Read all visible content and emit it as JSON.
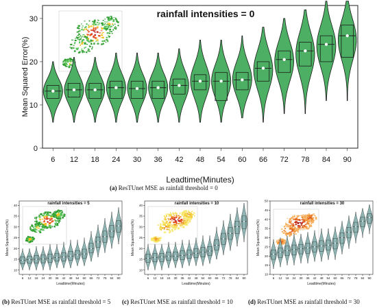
{
  "panels": [
    {
      "id": "a",
      "title": "rainfall intensities = 0",
      "xlabel": "Leadtime(Minutes)",
      "ylabel": "Mean Squared Error(%)",
      "caption_letter": "(a)",
      "caption_text": " ResTUnet MSE as rainfall threshold = 0",
      "map_type": "green"
    },
    {
      "id": "b",
      "title": "rainfall intensities = 5",
      "xlabel": "Leadtime(Minutes)",
      "ylabel": "Mean Squared Error(%)",
      "caption_letter": "(b)",
      "caption_text": " ResTUnet MSE as rainfall threshold = 5",
      "map_type": "green"
    },
    {
      "id": "c",
      "title": "rainfall intensities = 10",
      "xlabel": "Leadtime(Minutes)",
      "ylabel": "Mean Squared Error(%)",
      "caption_letter": "(c)",
      "caption_text": " ResTUnet MSE as rainfall threshold = 10",
      "map_type": "yellow"
    },
    {
      "id": "d",
      "title": "rainfall intensities = 30",
      "xlabel": "Leadtime(Minutes)",
      "ylabel": "Mean Squared Error(%)",
      "caption_letter": "(d)",
      "caption_text": " ResTUnet MSE as rainfall threshold = 30",
      "map_type": "orange"
    }
  ],
  "colors": {
    "violin_a": "#4caf63",
    "violin_small": "#8fb6b4",
    "axis": "#222222"
  },
  "chart_data": [
    {
      "type": "violin",
      "title": "rainfall intensities = 0",
      "xlabel": "Leadtime(Minutes)",
      "ylabel": "Mean Squared Error(%)",
      "categories": [
        "6",
        "12",
        "18",
        "24",
        "30",
        "36",
        "42",
        "48",
        "54",
        "60",
        "66",
        "72",
        "78",
        "84",
        "90"
      ],
      "median": [
        13.2,
        13.5,
        13.5,
        14.0,
        13.8,
        14.0,
        14.5,
        15.5,
        15.5,
        15.8,
        18.5,
        20.5,
        22.5,
        24.0,
        26.0
      ],
      "q1": [
        11.5,
        11.8,
        11.5,
        11.5,
        11.5,
        11.5,
        12.5,
        13.5,
        11.0,
        13.5,
        15.5,
        17.5,
        19.0,
        20.0,
        21.0
      ],
      "q3": [
        14.5,
        15.0,
        15.0,
        15.5,
        15.5,
        15.5,
        16.0,
        17.0,
        17.5,
        17.5,
        20.0,
        22.5,
        24.5,
        26.0,
        28.5
      ],
      "min": [
        6,
        6,
        6,
        6,
        6,
        6,
        6,
        6,
        6,
        7,
        6,
        8,
        8,
        11,
        11
      ],
      "max": [
        20,
        21,
        21,
        22,
        22,
        22,
        23,
        25,
        25,
        26,
        28,
        30,
        32,
        34,
        34
      ],
      "ylim": [
        0,
        33
      ],
      "yticks": [
        0,
        10,
        20,
        30
      ]
    },
    {
      "type": "violin",
      "title": "rainfall intensities = 5",
      "categories": [
        "6",
        "12",
        "18",
        "24",
        "30",
        "36",
        "42",
        "48",
        "54",
        "60",
        "66",
        "72",
        "78",
        "84",
        "90"
      ],
      "median": [
        14.5,
        14.8,
        15.0,
        15.2,
        15.5,
        15.8,
        16.0,
        16.5,
        17.0,
        17.5,
        20.0,
        23.0,
        25.5,
        28.0,
        30.5
      ],
      "min": [
        10,
        10,
        10,
        10,
        10,
        11,
        11,
        11,
        12,
        12,
        14,
        16,
        18,
        20,
        22
      ],
      "max": [
        20,
        20,
        21,
        21,
        22,
        22,
        23,
        24,
        24,
        25,
        28,
        31,
        34,
        37,
        39
      ],
      "ylim": [
        8,
        42
      ],
      "yticks": [
        10,
        15,
        20,
        25,
        30,
        35,
        40
      ]
    },
    {
      "type": "violin",
      "title": "rainfall intensities = 10",
      "categories": [
        "6",
        "12",
        "18",
        "24",
        "30",
        "36",
        "42",
        "48",
        "54",
        "60",
        "66",
        "72",
        "78",
        "84",
        "90"
      ],
      "median": [
        15.5,
        15.8,
        16.0,
        16.3,
        16.5,
        16.8,
        17.2,
        17.8,
        18.2,
        18.8,
        21.5,
        24.5,
        27.0,
        30.0,
        32.5
      ],
      "min": [
        10,
        10,
        10,
        11,
        11,
        11,
        12,
        12,
        12,
        13,
        15,
        17,
        19,
        21,
        23
      ],
      "max": [
        22,
        22,
        22,
        23,
        23,
        24,
        24,
        25,
        26,
        26,
        30,
        33,
        36,
        39,
        41
      ],
      "ylim": [
        8,
        42
      ],
      "yticks": [
        10,
        15,
        20,
        25,
        30,
        35,
        40
      ]
    },
    {
      "type": "violin",
      "title": "rainfall intensities = 30",
      "categories": [
        "6",
        "12",
        "18",
        "24",
        "30",
        "36",
        "42",
        "48",
        "54",
        "60",
        "66",
        "72",
        "78",
        "84",
        "90"
      ],
      "median": [
        21.0,
        22.0,
        23.0,
        23.5,
        24.0,
        24.5,
        25.0,
        25.5,
        26.0,
        27.0,
        30.0,
        33.0,
        36.0,
        39.0,
        41.0
      ],
      "min": [
        13,
        14,
        15,
        15,
        16,
        16,
        17,
        17,
        18,
        18,
        21,
        24,
        27,
        30,
        32
      ],
      "max": [
        29,
        30,
        31,
        32,
        32,
        33,
        34,
        35,
        35,
        36,
        39,
        42,
        44,
        46,
        48
      ],
      "ylim": [
        10,
        50
      ],
      "yticks": [
        10,
        15,
        20,
        25,
        30,
        35,
        40,
        45,
        50
      ]
    }
  ]
}
